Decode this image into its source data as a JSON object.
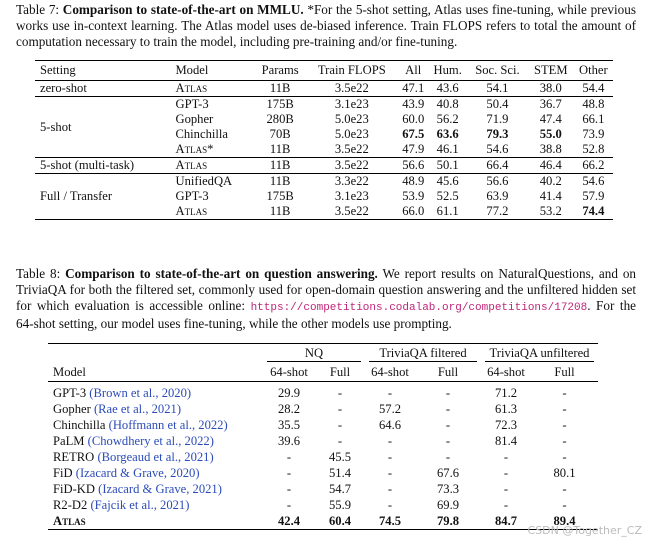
{
  "table7": {
    "label": "Table 7:",
    "title": "Comparison to state-of-the-art on MMLU.",
    "text": "*For the 5-shot setting, Atlas uses fine-tuning, while previous works use in-context learning. The Atlas model uses de-biased inference. Train FLOPS refers to total the amount of computation necessary to train the model, including pre-training and/or fine-tuning.",
    "headers": [
      "Setting",
      "Model",
      "Params",
      "Train FLOPS",
      "All",
      "Hum.",
      "Soc. Sci.",
      "STEM",
      "Other"
    ],
    "groups": [
      {
        "setting": "zero-shot",
        "rows": [
          [
            "Atlas",
            "11B",
            "3.5e22",
            "47.1",
            "43.6",
            "54.1",
            "38.0",
            "54.4"
          ]
        ]
      },
      {
        "setting": "5-shot",
        "rows": [
          [
            "GPT-3",
            "175B",
            "3.1e23",
            "43.9",
            "40.8",
            "50.4",
            "36.7",
            "48.8"
          ],
          [
            "Gopher",
            "280B",
            "5.0e23",
            "60.0",
            "56.2",
            "71.9",
            "47.4",
            "66.1"
          ],
          [
            "Chinchilla",
            "70B",
            "5.0e23",
            "67.5",
            "63.6",
            "79.3",
            "55.0",
            "73.9"
          ],
          [
            "Atlas*",
            "11B",
            "3.5e22",
            "47.9",
            "46.1",
            "54.6",
            "38.8",
            "52.8"
          ]
        ]
      },
      {
        "setting": "5-shot (multi-task)",
        "rows": [
          [
            "Atlas",
            "11B",
            "3.5e22",
            "56.6",
            "50.1",
            "66.4",
            "46.4",
            "66.2"
          ]
        ]
      },
      {
        "setting": "Full / Transfer",
        "rows": [
          [
            "UnifiedQA",
            "11B",
            "3.3e22",
            "48.9",
            "45.6",
            "56.6",
            "40.2",
            "54.6"
          ],
          [
            "GPT-3",
            "175B",
            "3.1e23",
            "53.9",
            "52.5",
            "63.9",
            "41.4",
            "57.9"
          ],
          [
            "Atlas",
            "11B",
            "3.5e22",
            "66.0",
            "61.1",
            "77.2",
            "53.2",
            "74.4"
          ]
        ]
      }
    ]
  },
  "table8": {
    "label": "Table 8:",
    "title": "Comparison to state-of-the-art on question answering.",
    "text": "We report results on NaturalQuestions, and on TriviaQA for both the filtered set, commonly used for open-domain question answering and the unfiltered hidden set for which evaluation is accessible online:",
    "url": "https://competitions.codalab.org/competitions/17208",
    "text_end": ". For the 64-shot setting, our model uses fine-tuning, while the other models use prompting.",
    "group_headers": [
      "NQ",
      "TriviaQA filtered",
      "TriviaQA unfiltered"
    ],
    "headers": [
      "Model",
      "64-shot",
      "Full",
      "64-shot",
      "Full",
      "64-shot",
      "Full"
    ],
    "rows": [
      {
        "model": "GPT-3",
        "cite": "(Brown et al., 2020)",
        "values": [
          "29.9",
          "-",
          "-",
          "-",
          "71.2",
          "-"
        ]
      },
      {
        "model": "Gopher",
        "cite": "(Rae et al., 2021)",
        "values": [
          "28.2",
          "-",
          "57.2",
          "-",
          "61.3",
          "-"
        ]
      },
      {
        "model": "Chinchilla",
        "cite": "(Hoffmann et al., 2022)",
        "values": [
          "35.5",
          "-",
          "64.6",
          "-",
          "72.3",
          "-"
        ]
      },
      {
        "model": "PaLM",
        "cite": "(Chowdhery et al., 2022)",
        "values": [
          "39.6",
          "-",
          "-",
          "-",
          "81.4",
          "-"
        ]
      },
      {
        "model": "RETRO",
        "cite": "(Borgeaud et al., 2021)",
        "values": [
          "-",
          "45.5",
          "-",
          "-",
          "-",
          "-"
        ]
      },
      {
        "model": "FiD",
        "cite": "(Izacard & Grave, 2020)",
        "values": [
          "-",
          "51.4",
          "-",
          "67.6",
          "-",
          "80.1"
        ]
      },
      {
        "model": "FiD-KD",
        "cite": "(Izacard & Grave, 2021)",
        "values": [
          "-",
          "54.7",
          "-",
          "73.3",
          "-",
          "-"
        ]
      },
      {
        "model": "R2-D2",
        "cite": "(Fajcik et al., 2021)",
        "values": [
          "-",
          "55.9",
          "-",
          "69.9",
          "-",
          "-"
        ]
      },
      {
        "model": "Atlas",
        "values": [
          "42.4",
          "60.4",
          "74.5",
          "79.8",
          "84.7",
          "89.4"
        ]
      }
    ]
  },
  "watermark": "CSDN @Together_CZ"
}
